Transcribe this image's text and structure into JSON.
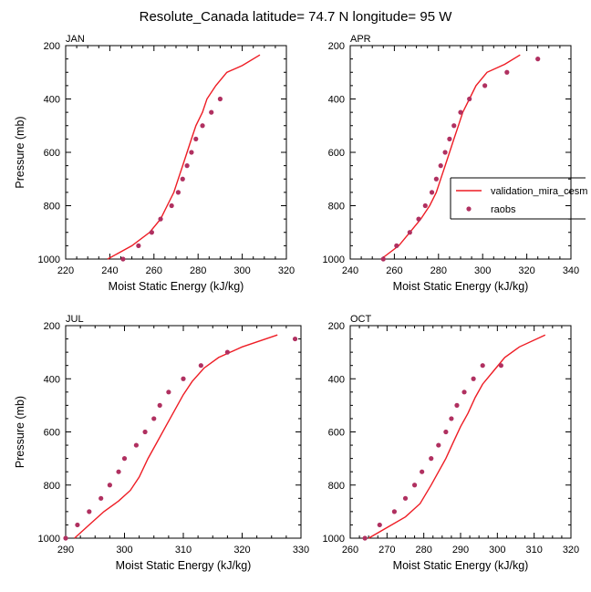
{
  "figure": {
    "title": "Resolute_Canada  latitude= 74.7 N longitude= 95 W"
  },
  "colors": {
    "model_line": "#ee1c24",
    "obs_markers": "#b03060",
    "axis": "#000000"
  },
  "legend": {
    "entries": [
      {
        "label": "validation_mira_cesm",
        "style": "line"
      },
      {
        "label": "raobs",
        "style": "marker"
      }
    ],
    "placement": "right of APR panel"
  },
  "chart_data": [
    {
      "type": "scatter",
      "panel": "JAN",
      "xlabel": "Moist Static Energy (kJ/kg)",
      "ylabel": "Pressure (mb)",
      "xlim": [
        220,
        320
      ],
      "ylim": [
        1000,
        200
      ],
      "xticks": [
        220,
        240,
        260,
        280,
        300,
        320
      ],
      "yticks": [
        200,
        400,
        600,
        800,
        1000
      ],
      "series": [
        {
          "name": "validation_mira_cesm",
          "kind": "line",
          "points": [
            [
              239,
              1000
            ],
            [
              250,
              950
            ],
            [
              258,
              900
            ],
            [
              263,
              850
            ],
            [
              266,
              800
            ],
            [
              269,
              750
            ],
            [
              271,
              700
            ],
            [
              273,
              650
            ],
            [
              275,
              600
            ],
            [
              277,
              550
            ],
            [
              279,
              500
            ],
            [
              282,
              450
            ],
            [
              284,
              400
            ],
            [
              288,
              350
            ],
            [
              293,
              300
            ],
            [
              300,
              275
            ],
            [
              308,
              235
            ]
          ]
        },
        {
          "name": "raobs",
          "kind": "marker",
          "points": [
            [
              246,
              1000
            ],
            [
              253,
              950
            ],
            [
              259,
              900
            ],
            [
              263,
              850
            ],
            [
              268,
              800
            ],
            [
              271,
              750
            ],
            [
              273,
              700
            ],
            [
              275,
              650
            ],
            [
              277,
              600
            ],
            [
              279,
              550
            ],
            [
              282,
              500
            ],
            [
              286,
              450
            ],
            [
              290,
              400
            ]
          ]
        }
      ]
    },
    {
      "type": "scatter",
      "panel": "APR",
      "xlabel": "Moist Static Energy (kJ/kg)",
      "ylabel": "",
      "xlim": [
        240,
        340
      ],
      "ylim": [
        1000,
        200
      ],
      "xticks": [
        240,
        260,
        280,
        300,
        320,
        340
      ],
      "yticks": [
        200,
        400,
        600,
        800,
        1000
      ],
      "series": [
        {
          "name": "validation_mira_cesm",
          "kind": "line",
          "points": [
            [
              254,
              1000
            ],
            [
              262,
              950
            ],
            [
              267,
              900
            ],
            [
              272,
              850
            ],
            [
              276,
              800
            ],
            [
              279,
              750
            ],
            [
              281,
              700
            ],
            [
              283,
              650
            ],
            [
              285,
              600
            ],
            [
              287,
              550
            ],
            [
              289,
              500
            ],
            [
              291,
              450
            ],
            [
              294,
              400
            ],
            [
              297,
              350
            ],
            [
              302,
              300
            ],
            [
              310,
              270
            ],
            [
              317,
              235
            ]
          ]
        },
        {
          "name": "raobs",
          "kind": "marker",
          "points": [
            [
              255,
              1000
            ],
            [
              261,
              950
            ],
            [
              267,
              900
            ],
            [
              271,
              850
            ],
            [
              274,
              800
            ],
            [
              277,
              750
            ],
            [
              279,
              700
            ],
            [
              281,
              650
            ],
            [
              283,
              600
            ],
            [
              285,
              550
            ],
            [
              287,
              500
            ],
            [
              290,
              450
            ],
            [
              294,
              400
            ],
            [
              301,
              350
            ],
            [
              311,
              300
            ],
            [
              325,
              250
            ]
          ]
        }
      ]
    },
    {
      "type": "scatter",
      "panel": "JUL",
      "xlabel": "Moist Static Energy (kJ/kg)",
      "ylabel": "Pressure (mb)",
      "xlim": [
        290,
        330
      ],
      "ylim": [
        1000,
        200
      ],
      "xticks": [
        290,
        300,
        310,
        320,
        330
      ],
      "yticks": [
        200,
        400,
        600,
        800,
        1000
      ],
      "series": [
        {
          "name": "validation_mira_cesm",
          "kind": "line",
          "points": [
            [
              291.5,
              1000
            ],
            [
              294,
              950
            ],
            [
              296.5,
              900
            ],
            [
              299,
              860
            ],
            [
              301,
              820
            ],
            [
              302.5,
              770
            ],
            [
              304,
              700
            ],
            [
              305.5,
              640
            ],
            [
              307,
              580
            ],
            [
              308.5,
              520
            ],
            [
              310,
              460
            ],
            [
              311.5,
              410
            ],
            [
              313.5,
              360
            ],
            [
              316,
              320
            ],
            [
              320,
              280
            ],
            [
              326,
              235
            ]
          ]
        },
        {
          "name": "raobs",
          "kind": "marker",
          "points": [
            [
              290,
              1000
            ],
            [
              292,
              950
            ],
            [
              294,
              900
            ],
            [
              296,
              850
            ],
            [
              297.5,
              800
            ],
            [
              299,
              750
            ],
            [
              300,
              700
            ],
            [
              302,
              650
            ],
            [
              303.5,
              600
            ],
            [
              305,
              550
            ],
            [
              306,
              500
            ],
            [
              307.5,
              450
            ],
            [
              310,
              400
            ],
            [
              313,
              350
            ],
            [
              317.5,
              300
            ],
            [
              329,
              250
            ]
          ]
        }
      ]
    },
    {
      "type": "scatter",
      "panel": "OCT",
      "xlabel": "Moist Static Energy (kJ/kg)",
      "ylabel": "",
      "xlim": [
        260,
        320
      ],
      "ylim": [
        1000,
        200
      ],
      "xticks": [
        260,
        270,
        280,
        290,
        300,
        310,
        320
      ],
      "yticks": [
        200,
        400,
        600,
        800,
        1000
      ],
      "series": [
        {
          "name": "validation_mira_cesm",
          "kind": "line",
          "points": [
            [
              265,
              1000
            ],
            [
              270,
              960
            ],
            [
              275,
              920
            ],
            [
              279,
              870
            ],
            [
              282,
              800
            ],
            [
              284,
              750
            ],
            [
              286,
              700
            ],
            [
              288,
              640
            ],
            [
              290,
              580
            ],
            [
              292,
              530
            ],
            [
              294,
              470
            ],
            [
              296,
              420
            ],
            [
              299,
              370
            ],
            [
              302,
              320
            ],
            [
              306,
              280
            ],
            [
              313,
              235
            ]
          ]
        },
        {
          "name": "raobs",
          "kind": "marker",
          "points": [
            [
              264,
              1000
            ],
            [
              268,
              950
            ],
            [
              272,
              900
            ],
            [
              275,
              850
            ],
            [
              277.5,
              800
            ],
            [
              279.5,
              750
            ],
            [
              282,
              700
            ],
            [
              284,
              650
            ],
            [
              286,
              600
            ],
            [
              287.5,
              550
            ],
            [
              289,
              500
            ],
            [
              291,
              450
            ],
            [
              293.5,
              400
            ],
            [
              296,
              350
            ],
            [
              301,
              350
            ]
          ]
        }
      ]
    }
  ]
}
